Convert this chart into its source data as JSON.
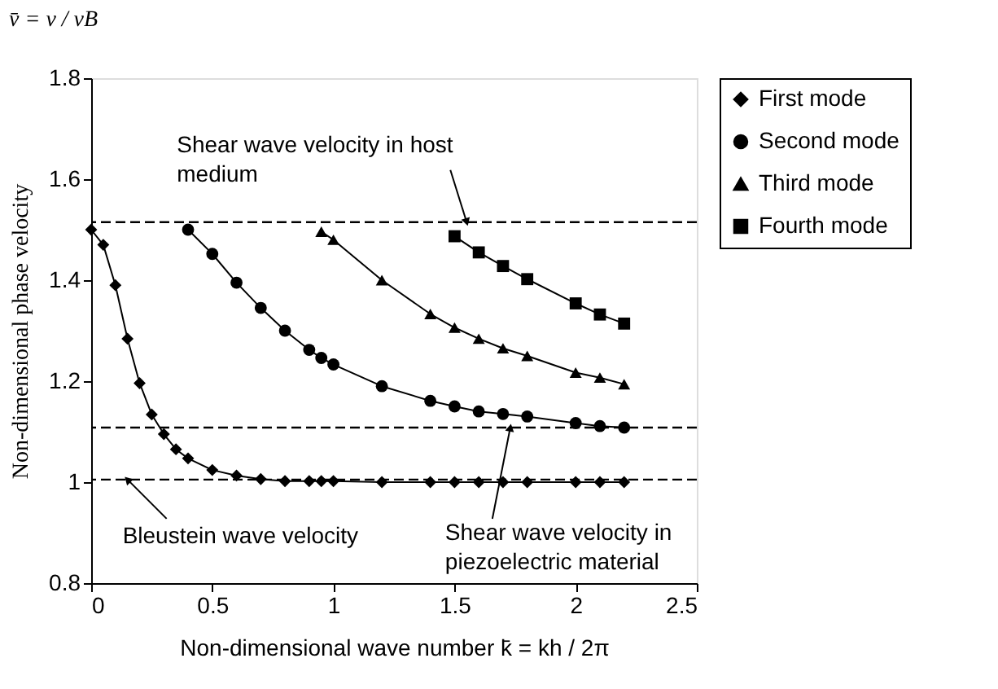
{
  "chart_data": {
    "type": "line",
    "xlabel": "Non-dimensional wave number  k̄ = kh / 2π",
    "ylabel": "Non-dimensional phase velocity",
    "xlim": [
      0,
      2.5
    ],
    "xticks": [
      0,
      0.5,
      1,
      1.5,
      2,
      2.5
    ],
    "ylim": [
      0.8,
      1.8
    ],
    "yticks": [
      0.8,
      1,
      1.2,
      1.4,
      1.6,
      1.8
    ],
    "grid": false,
    "legend": "right",
    "line_style": "solid",
    "series": [
      {
        "name": "First mode",
        "color": "#000000",
        "marker": "diamond",
        "x": [
          0,
          0.05,
          0.1,
          0.15,
          0.2,
          0.25,
          0.3,
          0.35,
          0.4,
          0.5,
          0.6,
          0.7,
          0.8,
          0.9,
          0.95,
          1.0,
          1.2,
          1.4,
          1.5,
          1.6,
          1.7,
          1.8,
          2.0,
          2.1,
          2.2
        ],
        "values": [
          1.5,
          1.47,
          1.39,
          1.284,
          1.196,
          1.134,
          1.095,
          1.065,
          1.047,
          1.024,
          1.013,
          1.006,
          1.002,
          1.002,
          1.002,
          1.002,
          1.0,
          1.0,
          1.0,
          1.0,
          1.0,
          1.0,
          1.0,
          1.0,
          1.0
        ]
      },
      {
        "name": "Second mode",
        "color": "#000000",
        "marker": "circle",
        "x": [
          0.4,
          0.5,
          0.6,
          0.7,
          0.8,
          0.9,
          0.95,
          1.0,
          1.2,
          1.4,
          1.5,
          1.6,
          1.7,
          1.8,
          2.0,
          2.1,
          2.2
        ],
        "values": [
          1.5,
          1.452,
          1.395,
          1.345,
          1.3,
          1.262,
          1.246,
          1.233,
          1.19,
          1.161,
          1.15,
          1.14,
          1.135,
          1.13,
          1.117,
          1.111,
          1.108
        ]
      },
      {
        "name": "Third mode",
        "color": "#000000",
        "marker": "triangle",
        "x": [
          0.95,
          1.0,
          1.2,
          1.4,
          1.5,
          1.6,
          1.7,
          1.8,
          2.0,
          2.1,
          2.2
        ],
        "values": [
          1.496,
          1.48,
          1.4,
          1.333,
          1.306,
          1.284,
          1.265,
          1.25,
          1.217,
          1.207,
          1.194
        ]
      },
      {
        "name": "Fourth mode",
        "color": "#000000",
        "marker": "square",
        "x": [
          1.5,
          1.6,
          1.7,
          1.8,
          2.0,
          2.1,
          2.2
        ],
        "values": [
          1.487,
          1.455,
          1.428,
          1.402,
          1.354,
          1.332,
          1.314
        ]
      }
    ],
    "ref_lines": [
      {
        "axis": "y",
        "value": 1.515,
        "color": "#000000",
        "line_style": "dashed"
      },
      {
        "axis": "y",
        "value": 1.108,
        "color": "#000000",
        "line_style": "dashed"
      },
      {
        "axis": "y",
        "value": 1.005,
        "color": "#000000",
        "line_style": "dashed"
      }
    ],
    "annotations": [
      "v̄ = v / vB",
      {
        "text": "Shear wave velocity in host\nmedium",
        "x": 1.55,
        "y": 1.515
      },
      {
        "text": "Bleustein  wave velocity",
        "x": 0.15,
        "y": 1.005
      },
      {
        "text": "Shear wave velocity in\npiezoelectric material",
        "x": 1.73,
        "y": 1.108
      }
    ]
  }
}
